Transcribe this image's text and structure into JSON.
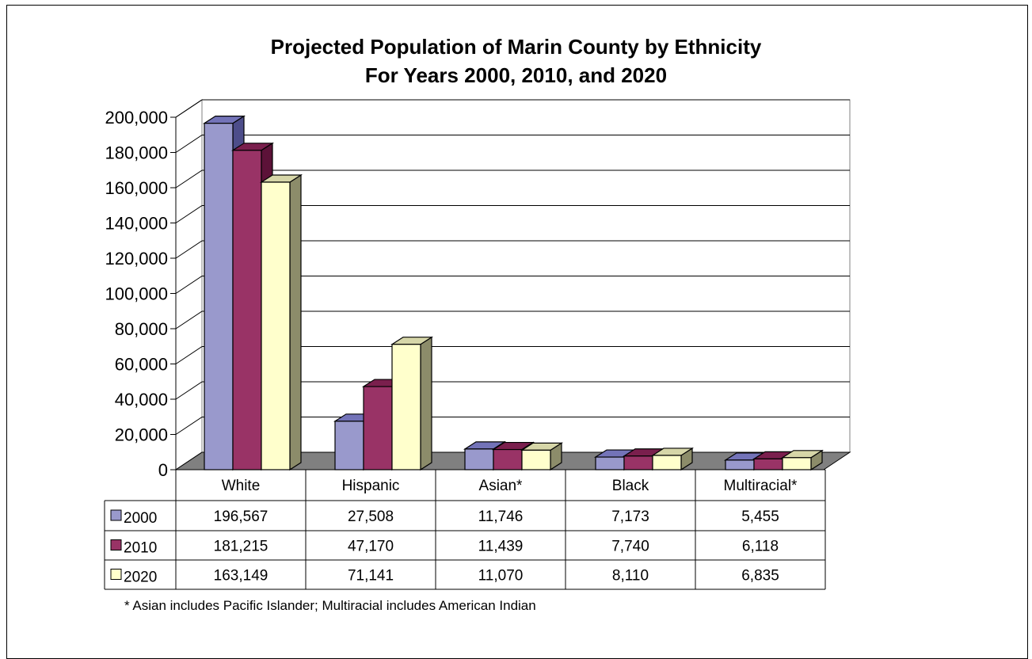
{
  "title_line1": "Projected Population of Marin County by Ethnicity",
  "title_line2": "For Years 2000, 2010, and 2020",
  "footnote": "* Asian includes Pacific Islander; Multiracial includes American Indian",
  "colors": {
    "s2000_front": "#9999cc",
    "s2000_top": "#7373b8",
    "s2000_side": "#4d4d8a",
    "s2010_front": "#993366",
    "s2010_top": "#7a1f4d",
    "s2010_side": "#5c1238",
    "s2020_front": "#ffffcc",
    "s2020_top": "#d6d6a8",
    "s2020_side": "#8c8c6a",
    "floor": "#808080"
  },
  "chart_data": {
    "type": "bar",
    "title": "Projected Population of Marin County by Ethnicity\nFor Years 2000, 2010, and 2020",
    "categories": [
      "White",
      "Hispanic",
      "Asian*",
      "Black",
      "Multiracial*"
    ],
    "series": [
      {
        "name": "2000",
        "values": [
          196567,
          27508,
          11746,
          7173,
          5455
        ],
        "labels": [
          "196,567",
          "27,508",
          "11,746",
          "7,173",
          "5,455"
        ]
      },
      {
        "name": "2010",
        "values": [
          181215,
          47170,
          11439,
          7740,
          6118
        ],
        "labels": [
          "181,215",
          "47,170",
          "11,439",
          "7,740",
          "6,118"
        ]
      },
      {
        "name": "2020",
        "values": [
          163149,
          71141,
          11070,
          8110,
          6835
        ],
        "labels": [
          "163,149",
          "71,141",
          "11,070",
          "8,110",
          "6,835"
        ]
      }
    ],
    "ylim": [
      0,
      200000
    ],
    "yticks": [
      "0",
      "20,000",
      "40,000",
      "60,000",
      "80,000",
      "100,000",
      "120,000",
      "140,000",
      "160,000",
      "180,000",
      "200,000"
    ],
    "grid": true,
    "legend": "data-table"
  }
}
